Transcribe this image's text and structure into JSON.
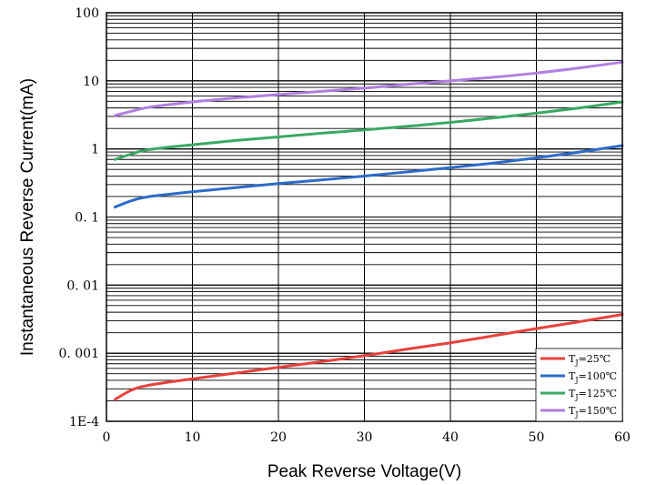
{
  "chart_data": {
    "type": "line",
    "title": "",
    "xlabel": "Peak Reverse Voltage(V)",
    "ylabel": "Instantaneous Reverse Current(mA)",
    "xlim": [
      0,
      60
    ],
    "ylim": [
      0.0001,
      100
    ],
    "yscale": "log",
    "grid": true,
    "legend_position": "bottom-right",
    "x_ticks": [
      0,
      10,
      20,
      30,
      40,
      50,
      60
    ],
    "x_tick_labels": [
      "0",
      "10",
      "20",
      "30",
      "40",
      "50",
      "60"
    ],
    "y_ticks": [
      0.0001,
      0.001,
      0.01,
      0.1,
      1,
      10,
      100
    ],
    "y_tick_labels": [
      "1E-4",
      "0. 001",
      "0. 01",
      "0. 1",
      "1",
      "10",
      "100"
    ],
    "series": [
      {
        "name": "T_J=25℃",
        "label_main": "T",
        "label_sub": "J",
        "label_rest": "=25℃",
        "color": "#e8413c",
        "x": [
          1,
          3,
          5,
          10,
          15,
          20,
          25,
          30,
          35,
          40,
          45,
          50,
          55,
          60
        ],
        "y": [
          0.00021,
          0.00029,
          0.00034,
          0.00042,
          0.00051,
          0.00062,
          0.00075,
          0.00092,
          0.00115,
          0.00142,
          0.0018,
          0.0023,
          0.0029,
          0.0037
        ]
      },
      {
        "name": "T_J=100℃",
        "label_main": "T",
        "label_sub": "J",
        "label_rest": "=100℃",
        "color": "#2a6cc9",
        "x": [
          1,
          3,
          5,
          10,
          15,
          20,
          25,
          30,
          35,
          40,
          45,
          50,
          55,
          60
        ],
        "y": [
          0.14,
          0.175,
          0.2,
          0.235,
          0.27,
          0.31,
          0.35,
          0.4,
          0.46,
          0.53,
          0.62,
          0.74,
          0.9,
          1.12
        ]
      },
      {
        "name": "T_J=125℃",
        "label_main": "T",
        "label_sub": "J",
        "label_rest": "=125℃",
        "color": "#3aa864",
        "x": [
          1,
          3,
          5,
          10,
          15,
          20,
          25,
          30,
          35,
          40,
          45,
          50,
          55,
          60
        ],
        "y": [
          0.7,
          0.85,
          0.98,
          1.15,
          1.33,
          1.5,
          1.7,
          1.9,
          2.15,
          2.45,
          2.85,
          3.35,
          4.0,
          4.9
        ]
      },
      {
        "name": "T_J=150℃",
        "label_main": "T",
        "label_sub": "J",
        "label_rest": "=150℃",
        "color": "#b07ee0",
        "x": [
          1,
          3,
          5,
          10,
          15,
          20,
          25,
          30,
          35,
          40,
          45,
          50,
          55,
          60
        ],
        "y": [
          3.1,
          3.6,
          4.1,
          4.9,
          5.6,
          6.3,
          7.0,
          7.8,
          8.9,
          10.0,
          11.3,
          13.0,
          15.5,
          18.8
        ]
      }
    ]
  }
}
